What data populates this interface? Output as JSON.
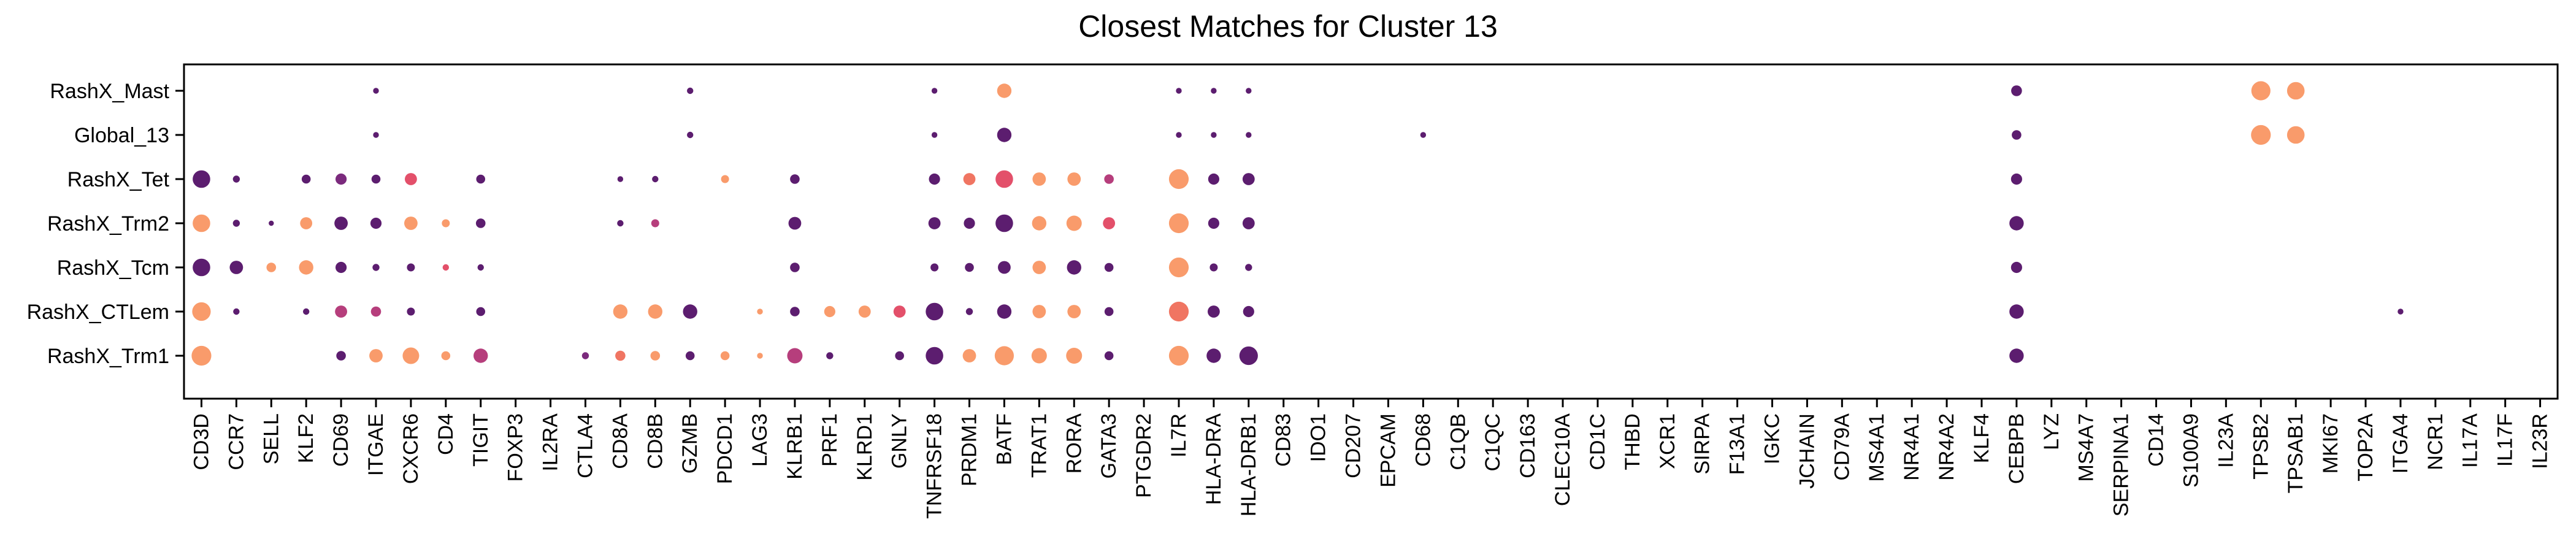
{
  "chart_data": {
    "type": "scatter",
    "title": "Closest Matches for Cluster 13",
    "rows": [
      "RashX_Mast",
      "Global_13",
      "RashX_Tet",
      "RashX_Trm2",
      "RashX_Tcm",
      "RashX_CTLem",
      "RashX_Trm1"
    ],
    "genes": [
      "CD3D",
      "CCR7",
      "SELL",
      "KLF2",
      "CD69",
      "ITGAE",
      "CXCR6",
      "CD4",
      "TIGIT",
      "FOXP3",
      "IL2RA",
      "CTLA4",
      "CD8A",
      "CD8B",
      "GZMB",
      "PDCD1",
      "LAG3",
      "KLRB1",
      "PRF1",
      "KLRD1",
      "GNLY",
      "TNFRSF18",
      "PRDM1",
      "BATF",
      "TRAT1",
      "RORA",
      "GATA3",
      "PTGDR2",
      "IL7R",
      "HLA-DRA",
      "HLA-DRB1",
      "CD83",
      "IDO1",
      "CD207",
      "EPCAM",
      "CD68",
      "C1QB",
      "C1QC",
      "CD163",
      "CLEC10A",
      "CD1C",
      "THBD",
      "XCR1",
      "SIRPA",
      "F13A1",
      "IGKC",
      "JCHAIN",
      "CD79A",
      "MS4A1",
      "NR4A1",
      "NR4A2",
      "KLF4",
      "CEBPB",
      "LYZ",
      "MS4A7",
      "SERPINA1",
      "CD14",
      "S100A9",
      "IL23A",
      "TPSB2",
      "TPSAB1",
      "MKI67",
      "TOP2A",
      "ITGA4",
      "NCR1",
      "IL17A",
      "IL17F",
      "IL23R"
    ],
    "color_scale": [
      "#5c1d6f",
      "#7b2a7d",
      "#b63e7c",
      "#e3506a",
      "#f07562",
      "#f99b6b"
    ],
    "points": [
      {
        "row": "RashX_Mast",
        "gene": "ITGAE",
        "size": 0.18,
        "color": 0.0
      },
      {
        "row": "RashX_Mast",
        "gene": "GZMB",
        "size": 0.2,
        "color": 0.0
      },
      {
        "row": "RashX_Mast",
        "gene": "TNFRSF18",
        "size": 0.18,
        "color": 0.0
      },
      {
        "row": "RashX_Mast",
        "gene": "BATF",
        "size": 0.45,
        "color": 0.95
      },
      {
        "row": "RashX_Mast",
        "gene": "IL7R",
        "size": 0.18,
        "color": 0.0
      },
      {
        "row": "RashX_Mast",
        "gene": "HLA-DRA",
        "size": 0.18,
        "color": 0.0
      },
      {
        "row": "RashX_Mast",
        "gene": "HLA-DRB1",
        "size": 0.18,
        "color": 0.0
      },
      {
        "row": "RashX_Mast",
        "gene": "CEBPB",
        "size": 0.34,
        "color": 0.0
      },
      {
        "row": "RashX_Mast",
        "gene": "TPSB2",
        "size": 0.6,
        "color": 0.95
      },
      {
        "row": "RashX_Mast",
        "gene": "TPSAB1",
        "size": 0.55,
        "color": 0.95
      },
      {
        "row": "Global_13",
        "gene": "ITGAE",
        "size": 0.18,
        "color": 0.0
      },
      {
        "row": "Global_13",
        "gene": "GZMB",
        "size": 0.2,
        "color": 0.0
      },
      {
        "row": "Global_13",
        "gene": "TNFRSF18",
        "size": 0.18,
        "color": 0.0
      },
      {
        "row": "Global_13",
        "gene": "BATF",
        "size": 0.45,
        "color": 0.0
      },
      {
        "row": "Global_13",
        "gene": "IL7R",
        "size": 0.18,
        "color": 0.0
      },
      {
        "row": "Global_13",
        "gene": "HLA-DRA",
        "size": 0.18,
        "color": 0.0
      },
      {
        "row": "Global_13",
        "gene": "HLA-DRB1",
        "size": 0.18,
        "color": 0.0
      },
      {
        "row": "Global_13",
        "gene": "CD68",
        "size": 0.18,
        "color": 0.0
      },
      {
        "row": "Global_13",
        "gene": "CEBPB",
        "size": 0.3,
        "color": 0.0
      },
      {
        "row": "Global_13",
        "gene": "TPSB2",
        "size": 0.62,
        "color": 0.95
      },
      {
        "row": "Global_13",
        "gene": "TPSAB1",
        "size": 0.55,
        "color": 0.95
      },
      {
        "row": "RashX_Tet",
        "gene": "CD3D",
        "size": 0.55,
        "color": 0.0
      },
      {
        "row": "RashX_Tet",
        "gene": "CCR7",
        "size": 0.22,
        "color": 0.0
      },
      {
        "row": "RashX_Tet",
        "gene": "KLF2",
        "size": 0.28,
        "color": 0.0
      },
      {
        "row": "RashX_Tet",
        "gene": "CD69",
        "size": 0.35,
        "color": 0.2
      },
      {
        "row": "RashX_Tet",
        "gene": "ITGAE",
        "size": 0.28,
        "color": 0.0
      },
      {
        "row": "RashX_Tet",
        "gene": "CXCR6",
        "size": 0.38,
        "color": 0.6
      },
      {
        "row": "RashX_Tet",
        "gene": "TIGIT",
        "size": 0.28,
        "color": 0.0
      },
      {
        "row": "RashX_Tet",
        "gene": "CD8A",
        "size": 0.18,
        "color": 0.0
      },
      {
        "row": "RashX_Tet",
        "gene": "CD8B",
        "size": 0.2,
        "color": 0.0
      },
      {
        "row": "RashX_Tet",
        "gene": "PDCD1",
        "size": 0.25,
        "color": 0.95
      },
      {
        "row": "RashX_Tet",
        "gene": "KLRB1",
        "size": 0.3,
        "color": 0.0
      },
      {
        "row": "RashX_Tet",
        "gene": "TNFRSF18",
        "size": 0.35,
        "color": 0.0
      },
      {
        "row": "RashX_Tet",
        "gene": "PRDM1",
        "size": 0.38,
        "color": 0.75
      },
      {
        "row": "RashX_Tet",
        "gene": "BATF",
        "size": 0.55,
        "color": 0.6
      },
      {
        "row": "RashX_Tet",
        "gene": "TRAT1",
        "size": 0.42,
        "color": 0.95
      },
      {
        "row": "RashX_Tet",
        "gene": "RORA",
        "size": 0.42,
        "color": 0.95
      },
      {
        "row": "RashX_Tet",
        "gene": "GATA3",
        "size": 0.3,
        "color": 0.45
      },
      {
        "row": "RashX_Tet",
        "gene": "IL7R",
        "size": 0.62,
        "color": 0.95
      },
      {
        "row": "RashX_Tet",
        "gene": "HLA-DRA",
        "size": 0.35,
        "color": 0.0
      },
      {
        "row": "RashX_Tet",
        "gene": "HLA-DRB1",
        "size": 0.38,
        "color": 0.0
      },
      {
        "row": "RashX_Tet",
        "gene": "CEBPB",
        "size": 0.35,
        "color": 0.0
      },
      {
        "row": "RashX_Trm2",
        "gene": "CD3D",
        "size": 0.55,
        "color": 0.95
      },
      {
        "row": "RashX_Trm2",
        "gene": "CCR7",
        "size": 0.22,
        "color": 0.0
      },
      {
        "row": "RashX_Trm2",
        "gene": "SELL",
        "size": 0.16,
        "color": 0.0
      },
      {
        "row": "RashX_Trm2",
        "gene": "KLF2",
        "size": 0.38,
        "color": 0.95
      },
      {
        "row": "RashX_Trm2",
        "gene": "CD69",
        "size": 0.42,
        "color": 0.0
      },
      {
        "row": "RashX_Trm2",
        "gene": "ITGAE",
        "size": 0.35,
        "color": 0.0
      },
      {
        "row": "RashX_Trm2",
        "gene": "CXCR6",
        "size": 0.42,
        "color": 0.95
      },
      {
        "row": "RashX_Trm2",
        "gene": "CD4",
        "size": 0.25,
        "color": 0.95
      },
      {
        "row": "RashX_Trm2",
        "gene": "TIGIT",
        "size": 0.3,
        "color": 0.0
      },
      {
        "row": "RashX_Trm2",
        "gene": "CD8A",
        "size": 0.2,
        "color": 0.0
      },
      {
        "row": "RashX_Trm2",
        "gene": "CD8B",
        "size": 0.25,
        "color": 0.45
      },
      {
        "row": "RashX_Trm2",
        "gene": "KLRB1",
        "size": 0.4,
        "color": 0.0
      },
      {
        "row": "RashX_Trm2",
        "gene": "TNFRSF18",
        "size": 0.38,
        "color": 0.0
      },
      {
        "row": "RashX_Trm2",
        "gene": "PRDM1",
        "size": 0.35,
        "color": 0.0
      },
      {
        "row": "RashX_Trm2",
        "gene": "BATF",
        "size": 0.55,
        "color": 0.0
      },
      {
        "row": "RashX_Trm2",
        "gene": "TRAT1",
        "size": 0.45,
        "color": 0.95
      },
      {
        "row": "RashX_Trm2",
        "gene": "RORA",
        "size": 0.48,
        "color": 0.95
      },
      {
        "row": "RashX_Trm2",
        "gene": "GATA3",
        "size": 0.38,
        "color": 0.6
      },
      {
        "row": "RashX_Trm2",
        "gene": "IL7R",
        "size": 0.62,
        "color": 0.95
      },
      {
        "row": "RashX_Trm2",
        "gene": "HLA-DRA",
        "size": 0.35,
        "color": 0.0
      },
      {
        "row": "RashX_Trm2",
        "gene": "HLA-DRB1",
        "size": 0.38,
        "color": 0.0
      },
      {
        "row": "RashX_Trm2",
        "gene": "CEBPB",
        "size": 0.45,
        "color": 0.0
      },
      {
        "row": "RashX_Tcm",
        "gene": "CD3D",
        "size": 0.55,
        "color": 0.0
      },
      {
        "row": "RashX_Tcm",
        "gene": "CCR7",
        "size": 0.42,
        "color": 0.0
      },
      {
        "row": "RashX_Tcm",
        "gene": "SELL",
        "size": 0.3,
        "color": 0.95
      },
      {
        "row": "RashX_Tcm",
        "gene": "KLF2",
        "size": 0.45,
        "color": 0.95
      },
      {
        "row": "RashX_Tcm",
        "gene": "CD69",
        "size": 0.35,
        "color": 0.0
      },
      {
        "row": "RashX_Tcm",
        "gene": "ITGAE",
        "size": 0.22,
        "color": 0.0
      },
      {
        "row": "RashX_Tcm",
        "gene": "CXCR6",
        "size": 0.25,
        "color": 0.0
      },
      {
        "row": "RashX_Tcm",
        "gene": "CD4",
        "size": 0.2,
        "color": 0.6
      },
      {
        "row": "RashX_Tcm",
        "gene": "TIGIT",
        "size": 0.2,
        "color": 0.0
      },
      {
        "row": "RashX_Tcm",
        "gene": "KLRB1",
        "size": 0.3,
        "color": 0.0
      },
      {
        "row": "RashX_Tcm",
        "gene": "TNFRSF18",
        "size": 0.25,
        "color": 0.0
      },
      {
        "row": "RashX_Tcm",
        "gene": "PRDM1",
        "size": 0.28,
        "color": 0.0
      },
      {
        "row": "RashX_Tcm",
        "gene": "BATF",
        "size": 0.4,
        "color": 0.0
      },
      {
        "row": "RashX_Tcm",
        "gene": "TRAT1",
        "size": 0.42,
        "color": 0.95
      },
      {
        "row": "RashX_Tcm",
        "gene": "RORA",
        "size": 0.45,
        "color": 0.0
      },
      {
        "row": "RashX_Tcm",
        "gene": "GATA3",
        "size": 0.28,
        "color": 0.0
      },
      {
        "row": "RashX_Tcm",
        "gene": "IL7R",
        "size": 0.62,
        "color": 0.95
      },
      {
        "row": "RashX_Tcm",
        "gene": "HLA-DRA",
        "size": 0.25,
        "color": 0.0
      },
      {
        "row": "RashX_Tcm",
        "gene": "HLA-DRB1",
        "size": 0.22,
        "color": 0.0
      },
      {
        "row": "RashX_Tcm",
        "gene": "CEBPB",
        "size": 0.35,
        "color": 0.0
      },
      {
        "row": "RashX_CTLem",
        "gene": "CD3D",
        "size": 0.58,
        "color": 0.95
      },
      {
        "row": "RashX_CTLem",
        "gene": "CCR7",
        "size": 0.2,
        "color": 0.0
      },
      {
        "row": "RashX_CTLem",
        "gene": "KLF2",
        "size": 0.2,
        "color": 0.0
      },
      {
        "row": "RashX_CTLem",
        "gene": "CD69",
        "size": 0.38,
        "color": 0.45
      },
      {
        "row": "RashX_CTLem",
        "gene": "ITGAE",
        "size": 0.32,
        "color": 0.45
      },
      {
        "row": "RashX_CTLem",
        "gene": "CXCR6",
        "size": 0.25,
        "color": 0.0
      },
      {
        "row": "RashX_CTLem",
        "gene": "TIGIT",
        "size": 0.28,
        "color": 0.0
      },
      {
        "row": "RashX_CTLem",
        "gene": "CD8A",
        "size": 0.45,
        "color": 0.95
      },
      {
        "row": "RashX_CTLem",
        "gene": "CD8B",
        "size": 0.45,
        "color": 0.95
      },
      {
        "row": "RashX_CTLem",
        "gene": "GZMB",
        "size": 0.45,
        "color": 0.0
      },
      {
        "row": "RashX_CTLem",
        "gene": "LAG3",
        "size": 0.18,
        "color": 0.95
      },
      {
        "row": "RashX_CTLem",
        "gene": "KLRB1",
        "size": 0.3,
        "color": 0.0
      },
      {
        "row": "RashX_CTLem",
        "gene": "PRF1",
        "size": 0.35,
        "color": 0.95
      },
      {
        "row": "RashX_CTLem",
        "gene": "KLRD1",
        "size": 0.38,
        "color": 0.95
      },
      {
        "row": "RashX_CTLem",
        "gene": "GNLY",
        "size": 0.38,
        "color": 0.6
      },
      {
        "row": "RashX_CTLem",
        "gene": "TNFRSF18",
        "size": 0.55,
        "color": 0.0
      },
      {
        "row": "RashX_CTLem",
        "gene": "PRDM1",
        "size": 0.22,
        "color": 0.0
      },
      {
        "row": "RashX_CTLem",
        "gene": "BATF",
        "size": 0.45,
        "color": 0.0
      },
      {
        "row": "RashX_CTLem",
        "gene": "TRAT1",
        "size": 0.42,
        "color": 0.95
      },
      {
        "row": "RashX_CTLem",
        "gene": "RORA",
        "size": 0.42,
        "color": 0.95
      },
      {
        "row": "RashX_CTLem",
        "gene": "GATA3",
        "size": 0.28,
        "color": 0.0
      },
      {
        "row": "RashX_CTLem",
        "gene": "IL7R",
        "size": 0.62,
        "color": 0.8
      },
      {
        "row": "RashX_CTLem",
        "gene": "HLA-DRA",
        "size": 0.38,
        "color": 0.0
      },
      {
        "row": "RashX_CTLem",
        "gene": "HLA-DRB1",
        "size": 0.35,
        "color": 0.0
      },
      {
        "row": "RashX_CTLem",
        "gene": "CEBPB",
        "size": 0.45,
        "color": 0.0
      },
      {
        "row": "RashX_CTLem",
        "gene": "ITGA4",
        "size": 0.18,
        "color": 0.0
      },
      {
        "row": "RashX_Trm1",
        "gene": "CD3D",
        "size": 0.62,
        "color": 0.95
      },
      {
        "row": "RashX_Trm1",
        "gene": "CD69",
        "size": 0.3,
        "color": 0.0
      },
      {
        "row": "RashX_Trm1",
        "gene": "ITGAE",
        "size": 0.42,
        "color": 0.95
      },
      {
        "row": "RashX_Trm1",
        "gene": "CXCR6",
        "size": 0.52,
        "color": 0.95
      },
      {
        "row": "RashX_Trm1",
        "gene": "CD4",
        "size": 0.28,
        "color": 0.95
      },
      {
        "row": "RashX_Trm1",
        "gene": "TIGIT",
        "size": 0.45,
        "color": 0.3
      },
      {
        "row": "RashX_Trm1",
        "gene": "CTLA4",
        "size": 0.22,
        "color": 0.2
      },
      {
        "row": "RashX_Trm1",
        "gene": "CD8A",
        "size": 0.32,
        "color": 0.8
      },
      {
        "row": "RashX_Trm1",
        "gene": "CD8B",
        "size": 0.3,
        "color": 0.95
      },
      {
        "row": "RashX_Trm1",
        "gene": "GZMB",
        "size": 0.28,
        "color": 0.0
      },
      {
        "row": "RashX_Trm1",
        "gene": "PDCD1",
        "size": 0.28,
        "color": 0.95
      },
      {
        "row": "RashX_Trm1",
        "gene": "LAG3",
        "size": 0.18,
        "color": 0.95
      },
      {
        "row": "RashX_Trm1",
        "gene": "KLRB1",
        "size": 0.48,
        "color": 0.35
      },
      {
        "row": "RashX_Trm1",
        "gene": "PRF1",
        "size": 0.22,
        "color": 0.0
      },
      {
        "row": "RashX_Trm1",
        "gene": "GNLY",
        "size": 0.28,
        "color": 0.0
      },
      {
        "row": "RashX_Trm1",
        "gene": "TNFRSF18",
        "size": 0.55,
        "color": 0.0
      },
      {
        "row": "RashX_Trm1",
        "gene": "PRDM1",
        "size": 0.42,
        "color": 0.95
      },
      {
        "row": "RashX_Trm1",
        "gene": "BATF",
        "size": 0.6,
        "color": 0.95
      },
      {
        "row": "RashX_Trm1",
        "gene": "TRAT1",
        "size": 0.48,
        "color": 0.95
      },
      {
        "row": "RashX_Trm1",
        "gene": "RORA",
        "size": 0.5,
        "color": 0.95
      },
      {
        "row": "RashX_Trm1",
        "gene": "GATA3",
        "size": 0.28,
        "color": 0.0
      },
      {
        "row": "RashX_Trm1",
        "gene": "IL7R",
        "size": 0.62,
        "color": 0.95
      },
      {
        "row": "RashX_Trm1",
        "gene": "HLA-DRA",
        "size": 0.45,
        "color": 0.0
      },
      {
        "row": "RashX_Trm1",
        "gene": "HLA-DRB1",
        "size": 0.58,
        "color": 0.0
      },
      {
        "row": "RashX_Trm1",
        "gene": "CEBPB",
        "size": 0.45,
        "color": 0.0
      }
    ]
  }
}
